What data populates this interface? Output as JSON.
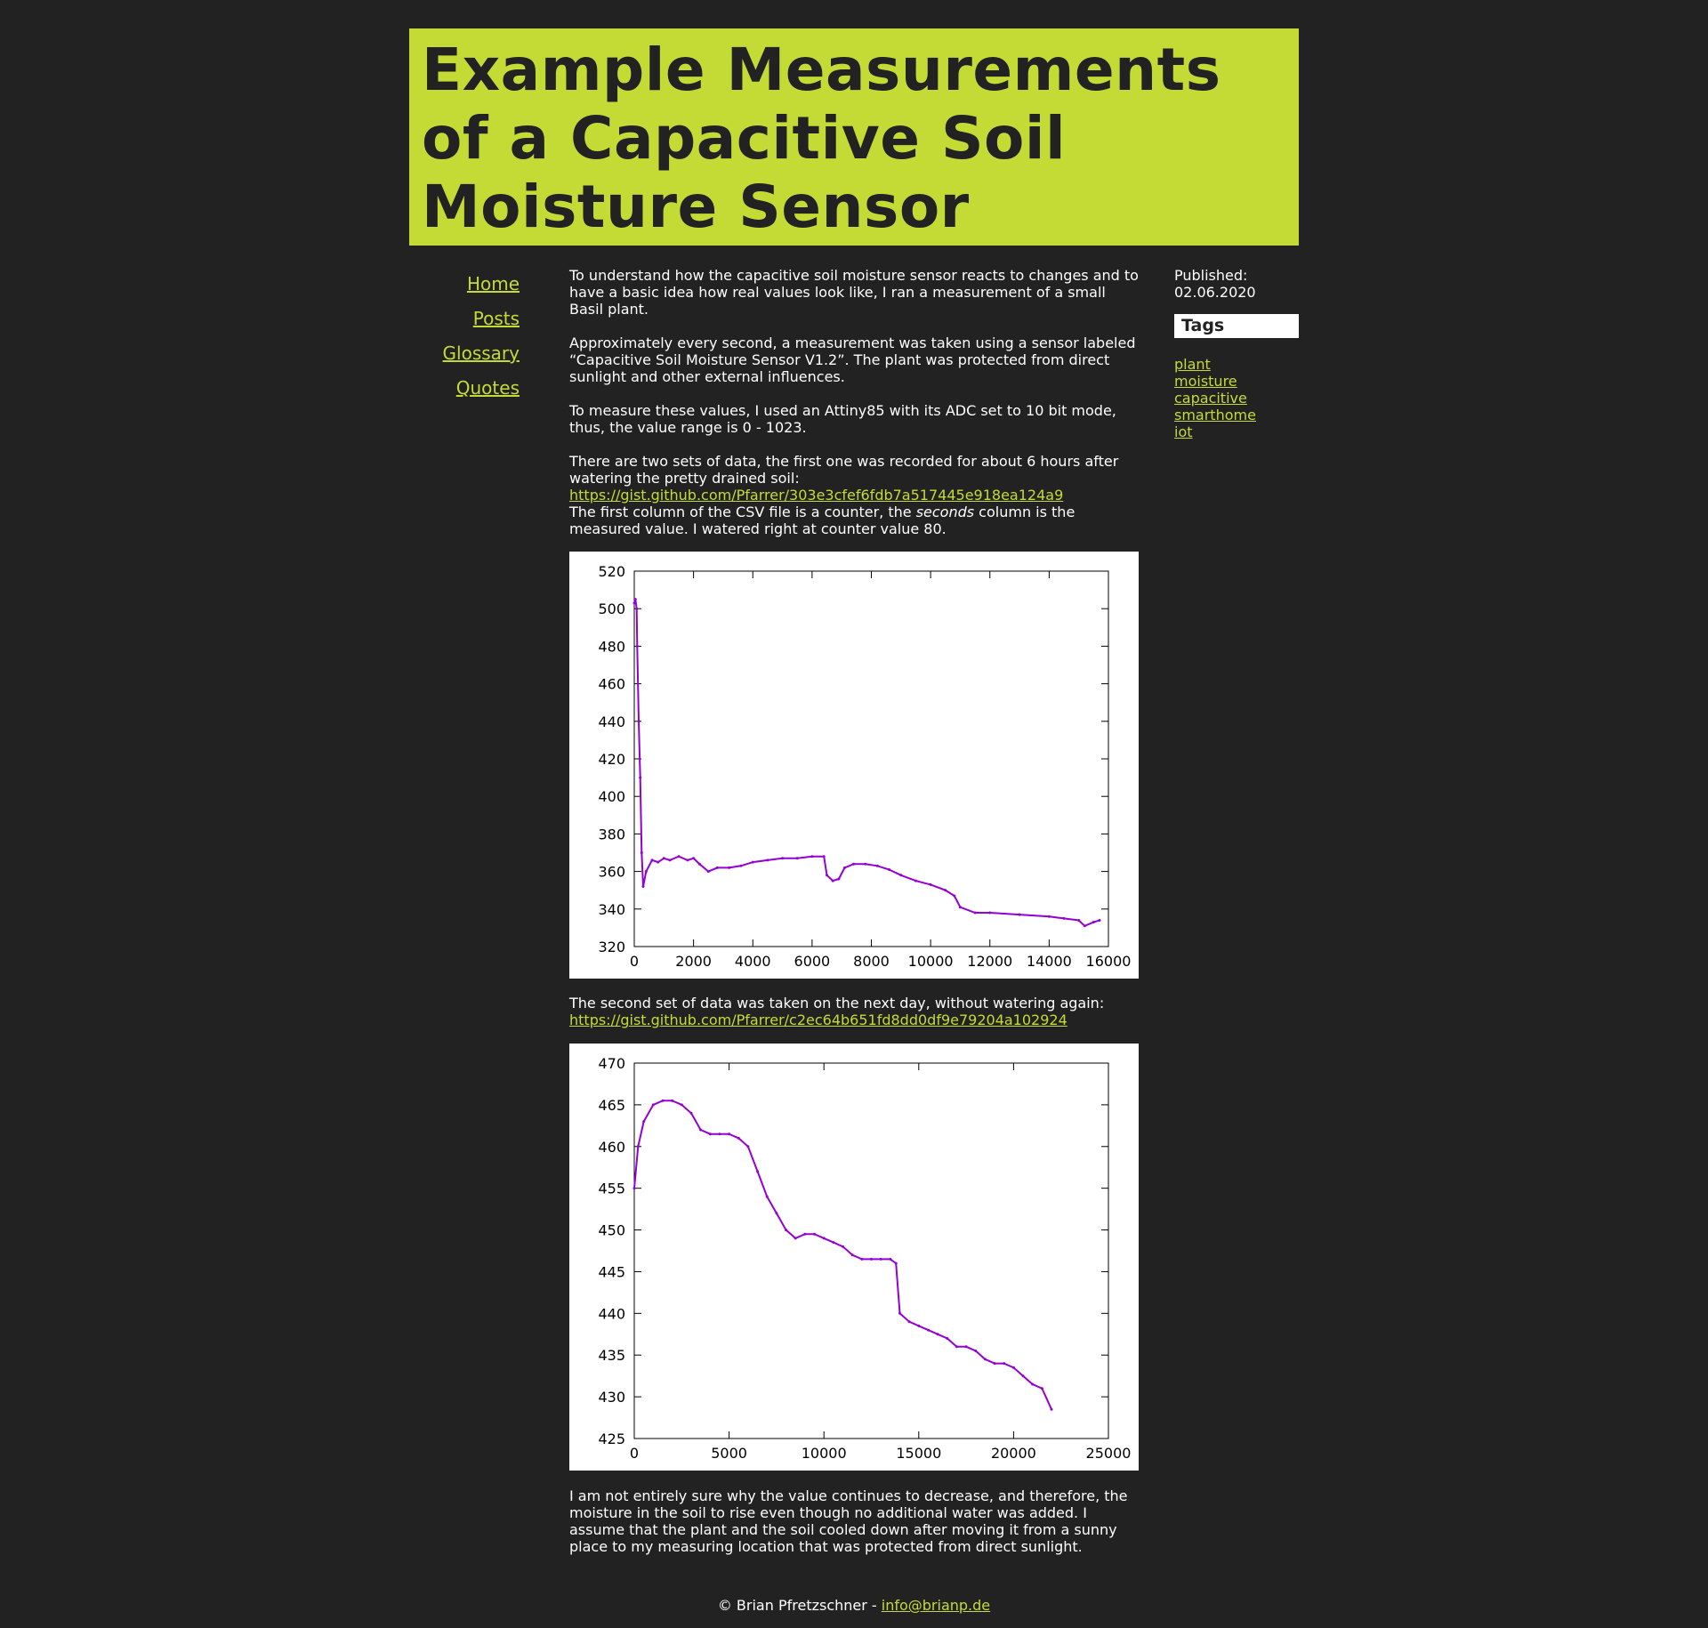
{
  "header": {
    "title": "Example Measurements of a Capacitive Soil Moisture Sensor"
  },
  "nav": [
    {
      "label": "Home"
    },
    {
      "label": "Posts"
    },
    {
      "label": "Glossary"
    },
    {
      "label": "Quotes"
    }
  ],
  "sidebar": {
    "published_label": "Published:",
    "published_date": "02.06.2020",
    "tags_heading": "Tags",
    "tags": [
      "plant",
      "moisture",
      "capacitive",
      "smarthome",
      "iot"
    ]
  },
  "article": {
    "p1": "To understand how the capacitive soil moisture sensor reacts to changes and to have a basic idea how real values look like, I ran a measurement of a small Basil plant.",
    "p2": "Approximately every second, a measurement was taken using a sensor labeled “Capacitive Soil Moisture Sensor V1.2”. The plant was protected from direct sunlight and other external influences.",
    "p3": "To measure these values, I used an Attiny85 with its ADC set to 10 bit mode, thus, the value range is 0 - 1023.",
    "p4_intro": "There are two sets of data, the first one was recorded for about 6 hours after watering the pretty drained soil:",
    "link1": "https://gist.github.com/Pfarrer/303e3cfef6fdb7a517445e918ea124a9",
    "p4_after_a": "The first column of the CSV file is a counter, the ",
    "p4_em": "seconds",
    "p4_after_b": " column is the measured value. I watered right at counter value 80.",
    "p5_intro": "The second set of data was taken on the next day, without watering again:",
    "link2": "https://gist.github.com/Pfarrer/c2ec64b651fd8dd0df9e79204a102924",
    "p6": "I am not entirely sure why the value continues to decrease, and therefore, the moisture in the soil to rise even though no additional water was added. I assume that the plant and the soil cooled down after moving it from a sunny place to my measuring location that was protected from direct sunlight."
  },
  "footer": {
    "copyright": "© Brian Pfretzschner - ",
    "email": "info@brianp.de"
  },
  "chart_data": [
    {
      "type": "line",
      "title": "",
      "xlabel": "",
      "ylabel": "",
      "xlim": [
        0,
        16000
      ],
      "ylim": [
        320,
        520
      ],
      "xticks": [
        0,
        2000,
        4000,
        6000,
        8000,
        10000,
        12000,
        14000,
        16000
      ],
      "yticks": [
        320,
        340,
        360,
        380,
        400,
        420,
        440,
        460,
        480,
        500,
        520
      ],
      "grid": false,
      "color": "#9400d3",
      "series": [
        {
          "x": [
            0,
            40,
            80,
            100,
            150,
            200,
            250,
            300,
            400,
            600,
            800,
            1000,
            1200,
            1500,
            1800,
            2000,
            2200,
            2500,
            2800,
            3200,
            3600,
            4000,
            4500,
            5000,
            5500,
            6000,
            6400,
            6500,
            6700,
            6900,
            7100,
            7400,
            7800,
            8200,
            8600,
            9000,
            9500,
            10000,
            10500,
            10800,
            11000,
            11500,
            12000,
            13000,
            14000,
            14500,
            15000,
            15200,
            15500,
            15700
          ],
          "y": [
            503,
            505,
            500,
            480,
            440,
            410,
            370,
            352,
            360,
            366,
            365,
            367,
            366,
            368,
            366,
            367,
            364,
            360,
            362,
            362,
            363,
            365,
            366,
            367,
            367,
            368,
            368,
            358,
            355,
            356,
            362,
            364,
            364,
            363,
            361,
            358,
            355,
            353,
            350,
            347,
            341,
            338,
            338,
            337,
            336,
            335,
            334,
            331,
            333,
            334
          ]
        }
      ]
    },
    {
      "type": "line",
      "title": "",
      "xlabel": "",
      "ylabel": "",
      "xlim": [
        0,
        25000
      ],
      "ylim": [
        425,
        470
      ],
      "xticks": [
        0,
        5000,
        10000,
        15000,
        20000,
        25000
      ],
      "yticks": [
        425,
        430,
        435,
        440,
        445,
        450,
        455,
        460,
        465,
        470
      ],
      "grid": false,
      "color": "#9400d3",
      "series": [
        {
          "x": [
            0,
            200,
            500,
            1000,
            1500,
            2000,
            2500,
            3000,
            3500,
            4000,
            4500,
            5000,
            5500,
            6000,
            6500,
            7000,
            7500,
            8000,
            8500,
            9000,
            9500,
            10000,
            10500,
            11000,
            11500,
            12000,
            12500,
            13000,
            13500,
            13800,
            14000,
            14500,
            15000,
            15500,
            16000,
            16500,
            17000,
            17500,
            18000,
            18500,
            19000,
            19500,
            20000,
            20500,
            21000,
            21500,
            22000
          ],
          "y": [
            455,
            460,
            463,
            465,
            465.5,
            465.5,
            465,
            464,
            462,
            461.5,
            461.5,
            461.5,
            461,
            460,
            457,
            454,
            452,
            450,
            449,
            449.5,
            449.5,
            449,
            448.5,
            448,
            447,
            446.5,
            446.5,
            446.5,
            446.5,
            446,
            440,
            439,
            438.5,
            438,
            437.5,
            437,
            436,
            436,
            435.5,
            434.5,
            434,
            434,
            433.5,
            432.5,
            431.5,
            431,
            428.5
          ]
        }
      ]
    }
  ]
}
